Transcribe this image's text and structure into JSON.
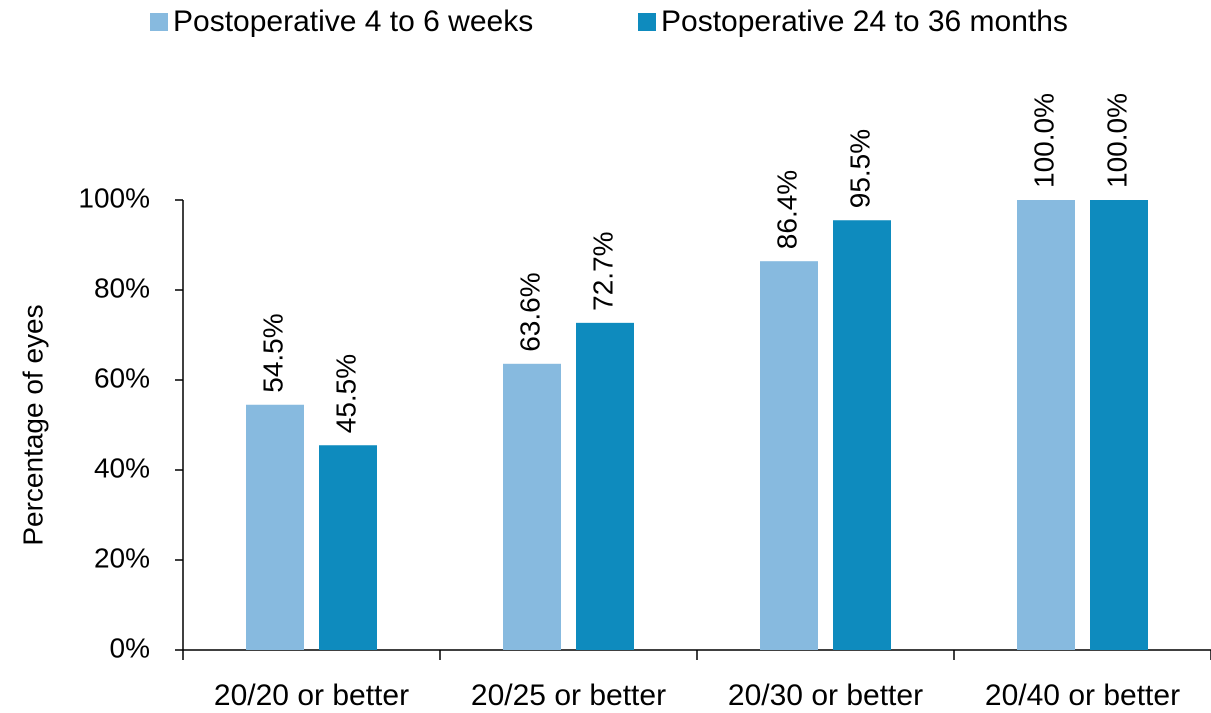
{
  "chart_data": {
    "type": "bar",
    "y_label": "Percentage of eyes",
    "categories": [
      "20/20 or better",
      "20/25 or better",
      "20/30 or better",
      "20/40 or better"
    ],
    "series": [
      {
        "name": "Postoperative 4 to 6 weeks",
        "color": "#87badf",
        "values": [
          54.5,
          63.6,
          86.4,
          100.0
        ],
        "value_labels": [
          "54.5%",
          "63.6%",
          "86.4%",
          "100.0%"
        ]
      },
      {
        "name": "Postoperative 24 to 36 months",
        "color": "#0e8bbe",
        "values": [
          45.5,
          72.7,
          95.5,
          100.0
        ],
        "value_labels": [
          "45.5%",
          "72.7%",
          "95.5%",
          "100.0%"
        ]
      }
    ],
    "ylim": [
      0,
      100
    ],
    "yticks": [
      {
        "value": 0,
        "label": "0%"
      },
      {
        "value": 20,
        "label": "20%"
      },
      {
        "value": 40,
        "label": "40%"
      },
      {
        "value": 60,
        "label": "60%"
      },
      {
        "value": 80,
        "label": "80%"
      },
      {
        "value": 100,
        "label": "100%"
      }
    ],
    "grid": false,
    "legend": "top"
  }
}
